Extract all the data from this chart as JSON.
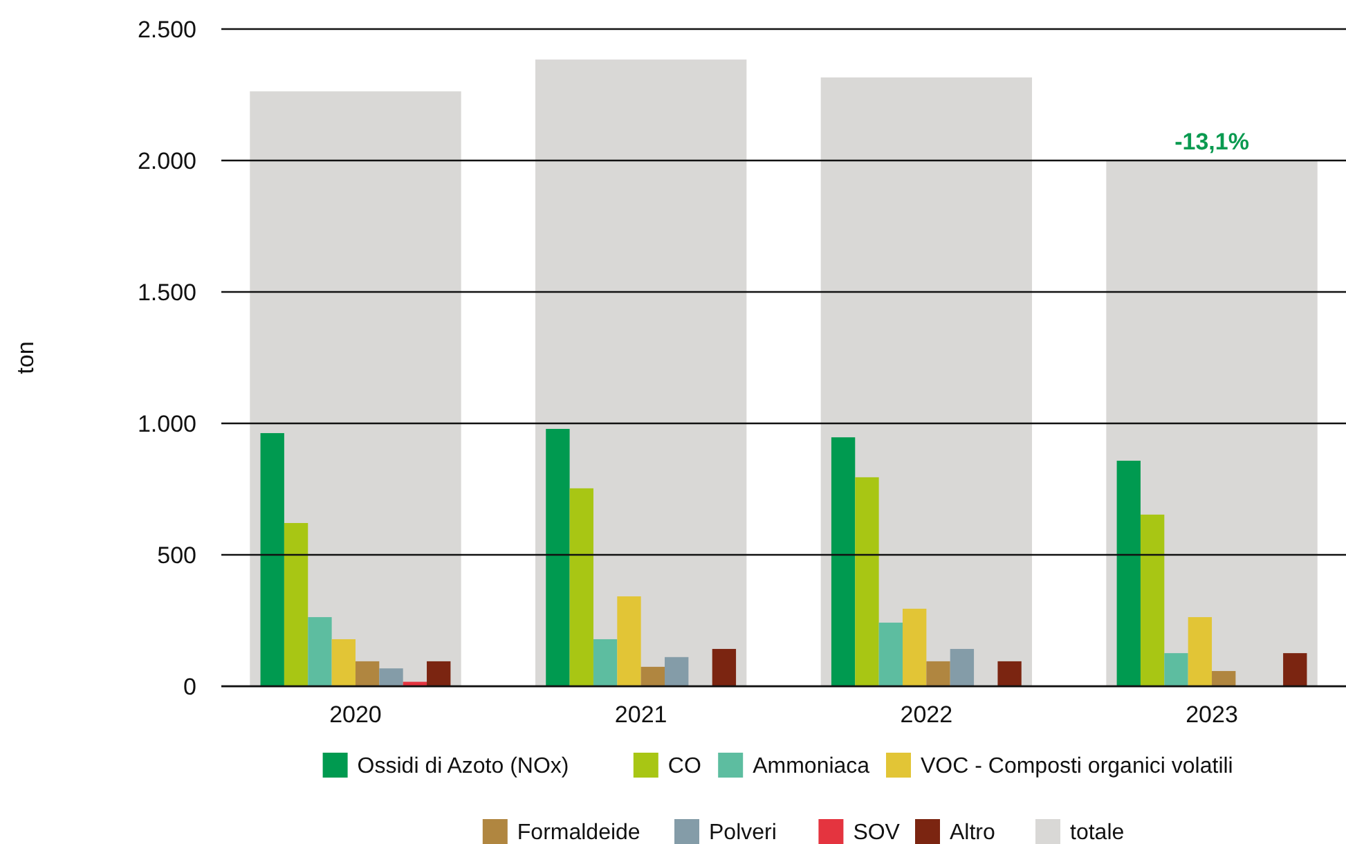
{
  "chart_data": {
    "type": "bar",
    "ylabel": "ton",
    "categories": [
      "2020",
      "2021",
      "2022",
      "2023"
    ],
    "series": [
      {
        "name": "Ossidi di Azoto (NOx)",
        "color": "#009a50",
        "values": [
          963,
          979,
          947,
          858
        ]
      },
      {
        "name": "CO",
        "color": "#a8c614",
        "values": [
          621,
          753,
          795,
          653
        ]
      },
      {
        "name": "Ammoniaca",
        "color": "#5dbda0",
        "values": [
          263,
          179,
          242,
          126
        ]
      },
      {
        "name": "VOC - Composti organici volatili",
        "color": "#e2c536",
        "values": [
          179,
          342,
          295,
          263
        ]
      },
      {
        "name": "Formaldeide",
        "color": "#b08640",
        "values": [
          95,
          74,
          95,
          58
        ]
      },
      {
        "name": "Polveri",
        "color": "#849ca8",
        "values": [
          68,
          111,
          142,
          null
        ]
      },
      {
        "name": "SOV",
        "color": "#e4343f",
        "values": [
          17,
          null,
          null,
          null
        ]
      },
      {
        "name": "Altro",
        "color": "#7b2511",
        "values": [
          95,
          142,
          95,
          126
        ]
      },
      {
        "name": "totale",
        "color": "#d9d8d6",
        "values": [
          2263,
          2384,
          2316,
          2000
        ]
      }
    ],
    "ylim": [
      0,
      2500
    ],
    "yticks": [
      {
        "value": 0,
        "label": "0"
      },
      {
        "value": 500,
        "label": "500"
      },
      {
        "value": 1000,
        "label": "1.000"
      },
      {
        "value": 1500,
        "label": "1.500"
      },
      {
        "value": 2000,
        "label": "2.000"
      },
      {
        "value": 2500,
        "label": "2.500"
      }
    ],
    "grid": "y",
    "legend": "bottom",
    "annotations": [
      {
        "text": "-13,1%",
        "x": "2023",
        "y": 2000
      }
    ]
  }
}
